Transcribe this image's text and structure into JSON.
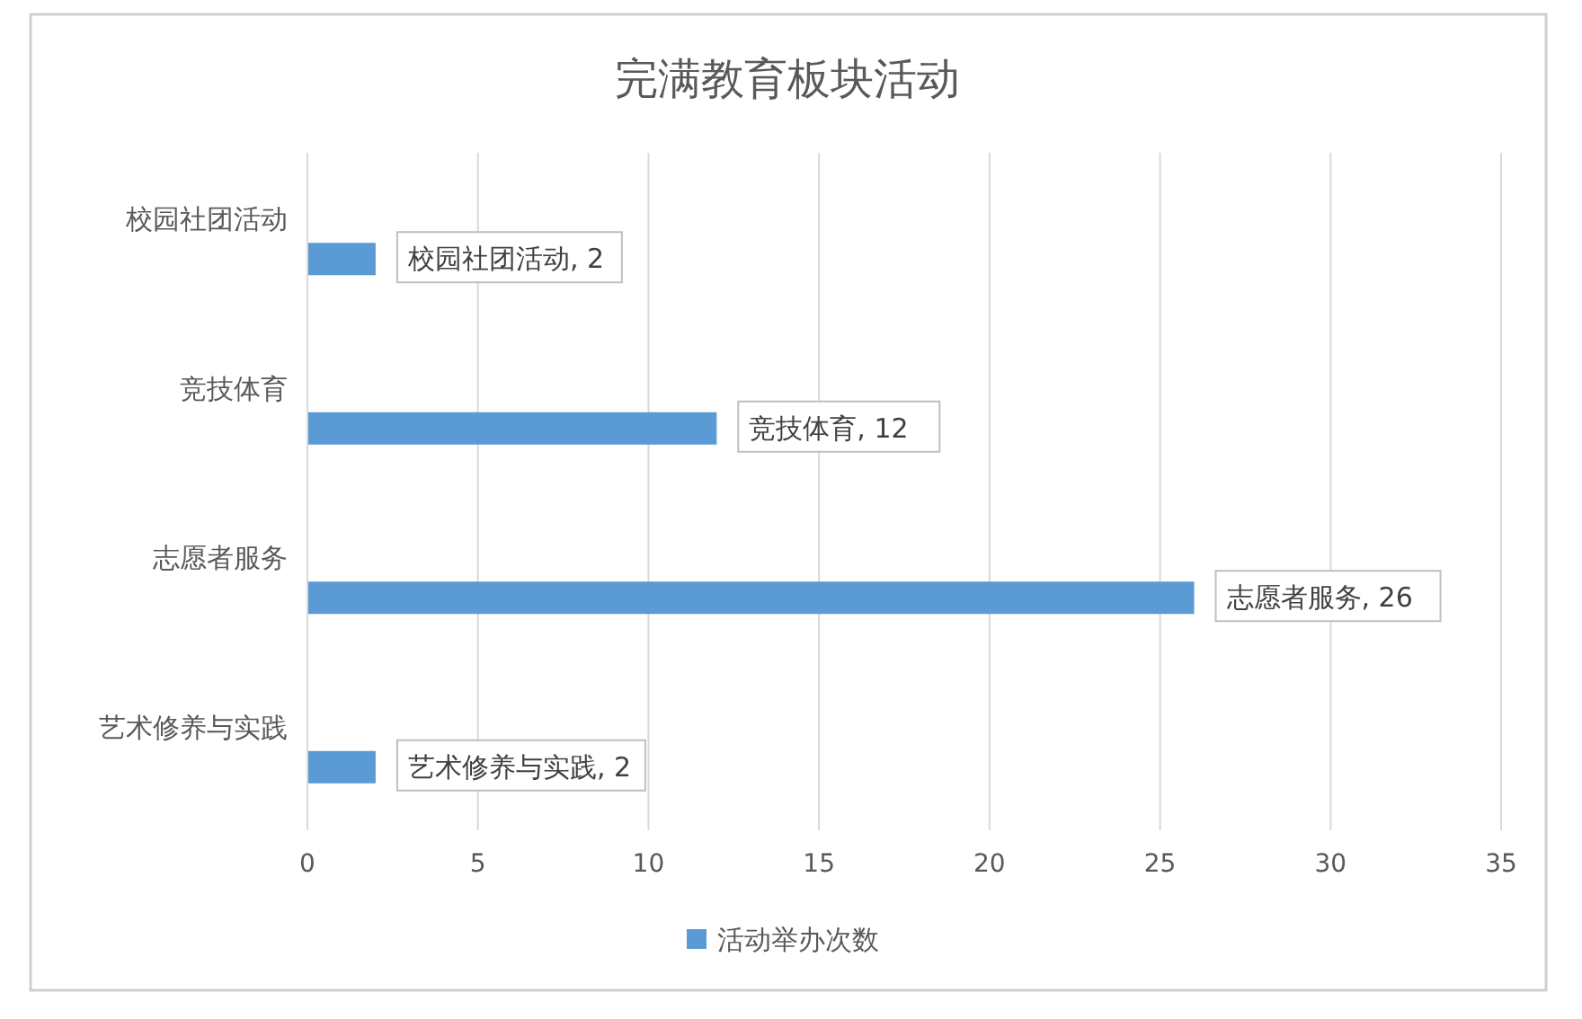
{
  "chart_data": {
    "type": "bar",
    "orientation": "horizontal",
    "title": "完满教育板块活动",
    "categories": [
      "校园社团活动",
      "竞技体育",
      "志愿者服务",
      "艺术修养与实践"
    ],
    "series": [
      {
        "name": "活动举办次数",
        "color": "#5b9bd5",
        "values": [
          2,
          12,
          26,
          2
        ],
        "value_labels": [
          "校园社团活动, 2",
          "竞技体育, 12",
          "志愿者服务, 26",
          "艺术修养与实践, 2"
        ]
      }
    ],
    "xlim": [
      0,
      35
    ],
    "xticks": [
      0,
      5,
      10,
      15,
      20,
      25,
      30,
      35
    ],
    "grid": "x",
    "legend": "bottom"
  }
}
